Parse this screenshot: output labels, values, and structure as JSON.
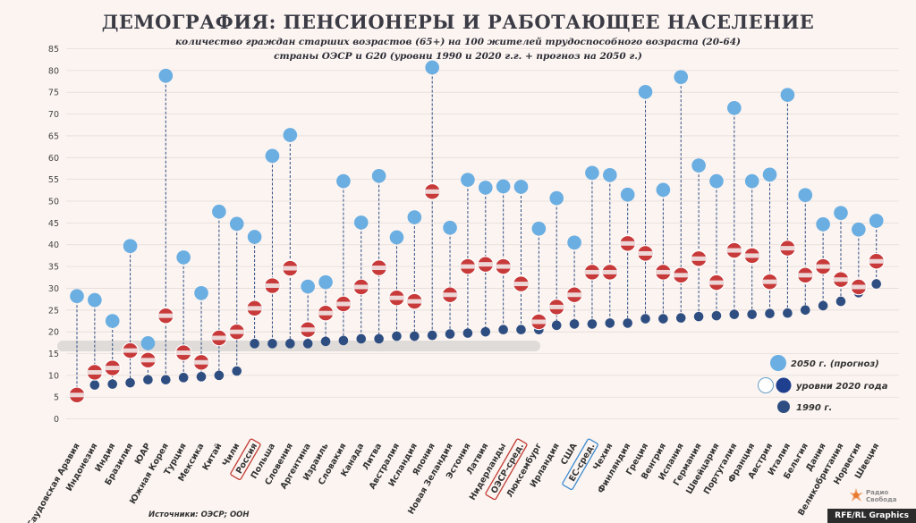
{
  "title": "ДЕМОГРАФИЯ: ПЕНСИОНЕРЫ И РАБОТАЮЩЕЕ НАСЕЛЕНИЕ",
  "subtitle_line1": "количество граждан старших возрастов (65+) на 100 жителей трудоспособного возраста (20-64)",
  "subtitle_line2": "страны ОЭСР и G20 (уровни 1990 и 2020 г.г. + прогноз на 2050 г.)",
  "source": "Источники: ОЭСР; ООН",
  "credit": "RFE/RL Graphics",
  "logo_text_line1": "Радио",
  "logo_text_line2": "Свобода",
  "colors": {
    "forecast_2050": "#6aaee2",
    "level_1990": "#2e4e82",
    "stem": "#2e4e82",
    "axis_band": "#bcbcbc",
    "highlight_box": "#c23b33",
    "eu_box": "#3d8ccf"
  },
  "legend": {
    "forecast": "2050 г. (прогноз)",
    "levels2020": "уровни 2020 года",
    "y1990": "1990 г."
  },
  "chart_data": {
    "type": "scatter",
    "ylim": [
      0,
      85
    ],
    "yticks": [
      0,
      5,
      10,
      15,
      20,
      25,
      30,
      35,
      40,
      45,
      50,
      55,
      60,
      65,
      70,
      75,
      80,
      85
    ],
    "grid": true,
    "legend_position": "bottom-right",
    "categories": [
      "Саудовская Аравия",
      "Индонезия",
      "Индия",
      "Бразилия",
      "ЮАР",
      "Южная Корея",
      "Турция",
      "Мексика",
      "Китай",
      "Чили",
      "Россия",
      "Польша",
      "Словения",
      "Аргентина",
      "Израиль",
      "Словакия",
      "Канада",
      "Литва",
      "Австралия",
      "Исландия",
      "Япония",
      "Новая Зеландия",
      "Эстония",
      "Латвия",
      "Нидерланды",
      "ОЭСР-сред.",
      "Люксембург",
      "Ирландия",
      "США",
      "ЕС-сред.",
      "Чехия",
      "Финляндия",
      "Греция",
      "Венгрия",
      "Испания",
      "Германия",
      "Швейцария",
      "Португалия",
      "Франция",
      "Австрия",
      "Италия",
      "Бельгия",
      "Дания",
      "Великобритания",
      "Норвегия",
      "Швеция"
    ],
    "highlighted": [
      "Россия",
      "ОЭСР-сред."
    ],
    "highlighted_blue": [
      "ЕС-сред."
    ],
    "series": [
      {
        "name": "1990 г.",
        "values": [
          5.5,
          7.8,
          8,
          8.3,
          9,
          9,
          9.5,
          9.7,
          10,
          11,
          17.3,
          17.3,
          17.3,
          17.3,
          17.8,
          18,
          18.4,
          18.4,
          19,
          19,
          19.2,
          19.5,
          19.7,
          20,
          20.5,
          20.5,
          20.5,
          21.5,
          21.8,
          21.8,
          22,
          22,
          23,
          23,
          23.2,
          23.5,
          23.7,
          24,
          24,
          24.2,
          24.3,
          25,
          26,
          27,
          29,
          31
        ]
      },
      {
        "name": "уровни 2020 года",
        "values": [
          5.5,
          10.7,
          11.7,
          15.7,
          13.5,
          23.7,
          15.2,
          13,
          18.6,
          20,
          25.4,
          30.6,
          34.6,
          20.5,
          24.3,
          26.4,
          30.3,
          34.7,
          27.8,
          27,
          52.2,
          28.5,
          35,
          35.5,
          35,
          31,
          22.3,
          25.7,
          28.5,
          33.7,
          33.7,
          40.3,
          38,
          33.7,
          33,
          36.8,
          31.3,
          38.7,
          37.5,
          31.5,
          39.2,
          33,
          35,
          32,
          30.3,
          36.2
        ]
      },
      {
        "name": "2050 г. (прогноз)",
        "values": [
          28.2,
          27.3,
          22.5,
          39.7,
          17.4,
          78.8,
          37.1,
          28.9,
          47.6,
          44.8,
          41.8,
          60.4,
          65.2,
          30.4,
          31.4,
          54.6,
          45.1,
          55.8,
          41.7,
          46.3,
          80.7,
          43.9,
          54.9,
          53.1,
          53.4,
          53.3,
          43.7,
          50.7,
          40.5,
          56.5,
          56.0,
          51.5,
          75.1,
          52.6,
          78.5,
          58.2,
          54.6,
          71.4,
          54.6,
          56.1,
          74.4,
          51.4,
          44.7,
          47.3,
          43.5,
          45.5
        ]
      }
    ]
  }
}
